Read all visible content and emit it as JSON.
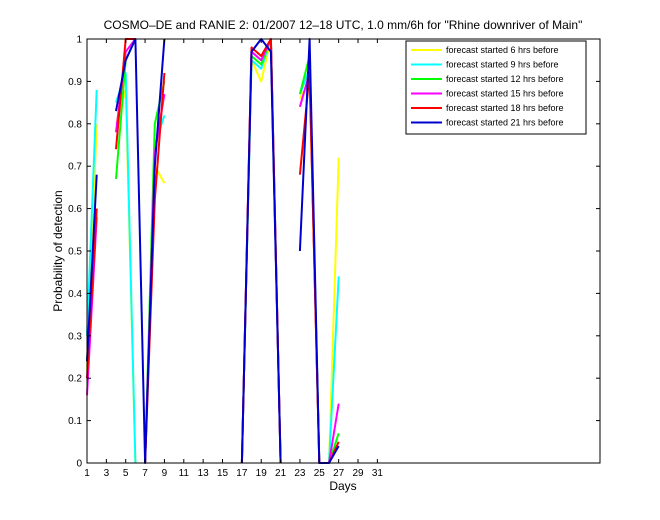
{
  "chart_data": {
    "type": "line",
    "title": "COSMO–DE and RANIE 2: 01/2007 12–18 UTC, 1.0 mm/6h for \"Rhine downriver of Main\"",
    "xlabel": "Days",
    "ylabel": "Probability of detection",
    "xlim": [
      1,
      54
    ],
    "ylim": [
      0,
      1
    ],
    "x_ticks": [
      "1",
      "3",
      "5",
      "7",
      "9",
      "11",
      "13",
      "15",
      "17",
      "19",
      "21",
      "23",
      "25",
      "27",
      "29",
      "31"
    ],
    "x_tick_values": [
      1,
      3,
      5,
      7,
      9,
      11,
      13,
      15,
      17,
      19,
      21,
      23,
      25,
      27,
      29,
      31
    ],
    "y_ticks": [
      "0",
      "0.1",
      "0.2",
      "0.3",
      "0.4",
      "0.5",
      "0.6",
      "0.7",
      "0.8",
      "0.9",
      "1"
    ],
    "y_tick_values": [
      0,
      0.1,
      0.2,
      0.3,
      0.4,
      0.5,
      0.6,
      0.7,
      0.8,
      0.9,
      1
    ],
    "legend_position": "top-right",
    "series": [
      {
        "name": "forecast started 6 hrs before",
        "color": "#ffff00",
        "segments": [
          [
            [
              1,
              0.22
            ],
            [
              2,
              0.8
            ]
          ],
          [
            [
              4,
              0.8
            ],
            [
              5,
              0.88
            ],
            [
              6,
              0.0
            ]
          ],
          [
            [
              7,
              0.0
            ],
            [
              8,
              0.7
            ],
            [
              9,
              0.66
            ]
          ],
          [
            [
              17,
              0.0
            ],
            [
              18,
              0.95
            ],
            [
              19,
              0.9
            ],
            [
              20,
              1.0
            ],
            [
              21,
              0.0
            ]
          ],
          [
            [
              23,
              0.86
            ],
            [
              24,
              0.9
            ],
            [
              25,
              0.0
            ],
            [
              26,
              0.0
            ],
            [
              27,
              0.72
            ]
          ]
        ]
      },
      {
        "name": "forecast started 9 hrs before",
        "color": "#00ffff",
        "segments": [
          [
            [
              1,
              0.3
            ],
            [
              2,
              0.88
            ]
          ],
          [
            [
              4,
              0.85
            ],
            [
              5,
              0.92
            ],
            [
              6,
              0.0
            ]
          ],
          [
            [
              7,
              0.0
            ],
            [
              8,
              0.75
            ],
            [
              9,
              0.82
            ]
          ],
          [
            [
              17,
              0.0
            ],
            [
              18,
              0.95
            ],
            [
              19,
              0.93
            ],
            [
              20,
              1.0
            ],
            [
              21,
              0.0
            ]
          ],
          [
            [
              23,
              0.87
            ],
            [
              24,
              0.93
            ],
            [
              25,
              0.0
            ],
            [
              26,
              0.0
            ],
            [
              27,
              0.44
            ]
          ]
        ]
      },
      {
        "name": "forecast started 12 hrs before",
        "color": "#00ff00",
        "segments": [
          [
            [
              1,
              0.24
            ],
            [
              2,
              0.6
            ]
          ],
          [
            [
              4,
              0.67
            ],
            [
              5,
              0.95
            ],
            [
              6,
              1.0
            ]
          ],
          [
            [
              7,
              0.0
            ],
            [
              8,
              0.8
            ],
            [
              9,
              0.9
            ]
          ],
          [
            [
              17,
              0.0
            ],
            [
              18,
              0.96
            ],
            [
              19,
              0.94
            ],
            [
              20,
              1.0
            ],
            [
              21,
              0.0
            ]
          ],
          [
            [
              23,
              0.87
            ],
            [
              24,
              0.96
            ],
            [
              25,
              0.0
            ],
            [
              26,
              0.0
            ],
            [
              27,
              0.07
            ]
          ]
        ]
      },
      {
        "name": "forecast started 15 hrs before",
        "color": "#ff00ff",
        "segments": [
          [
            [
              1,
              0.16
            ],
            [
              2,
              0.58
            ]
          ],
          [
            [
              4,
              0.78
            ],
            [
              5,
              0.97
            ],
            [
              6,
              1.0
            ]
          ],
          [
            [
              7,
              0.0
            ],
            [
              8,
              0.73
            ],
            [
              9,
              0.87
            ]
          ],
          [
            [
              17,
              0.0
            ],
            [
              18,
              0.97
            ],
            [
              19,
              0.95
            ],
            [
              20,
              1.0
            ],
            [
              21,
              0.0
            ]
          ],
          [
            [
              23,
              0.84
            ],
            [
              24,
              0.92
            ],
            [
              25,
              0.0
            ],
            [
              26,
              0.0
            ],
            [
              27,
              0.14
            ]
          ]
        ]
      },
      {
        "name": "forecast started 18 hrs before",
        "color": "#ff0000",
        "segments": [
          [
            [
              1,
              0.2
            ],
            [
              2,
              0.6
            ]
          ],
          [
            [
              4,
              0.74
            ],
            [
              5,
              1.0
            ],
            [
              6,
              1.0
            ]
          ],
          [
            [
              7,
              0.0
            ],
            [
              8,
              0.62
            ],
            [
              9,
              0.92
            ]
          ],
          [
            [
              17,
              0.0
            ],
            [
              18,
              0.98
            ],
            [
              19,
              0.96
            ],
            [
              20,
              1.0
            ],
            [
              21,
              0.0
            ]
          ],
          [
            [
              23,
              0.68
            ],
            [
              24,
              0.92
            ],
            [
              25,
              0.0
            ],
            [
              26,
              0.0
            ],
            [
              27,
              0.05
            ]
          ]
        ]
      },
      {
        "name": "forecast started 21 hrs before",
        "color": "#0000cc",
        "segments": [
          [
            [
              1,
              0.24
            ],
            [
              2,
              0.68
            ]
          ],
          [
            [
              4,
              0.83
            ],
            [
              5,
              0.95
            ],
            [
              6,
              1.0
            ],
            [
              7,
              0.0
            ],
            [
              8,
              0.7
            ],
            [
              9,
              1.0
            ]
          ],
          [
            [
              17,
              0.0
            ],
            [
              18,
              0.97
            ],
            [
              19,
              1.0
            ],
            [
              20,
              0.97
            ],
            [
              21,
              0.0
            ]
          ],
          [
            [
              23,
              0.5
            ],
            [
              24,
              1.0
            ],
            [
              25,
              0.0
            ],
            [
              26,
              0.0
            ],
            [
              27,
              0.04
            ]
          ]
        ]
      }
    ]
  }
}
